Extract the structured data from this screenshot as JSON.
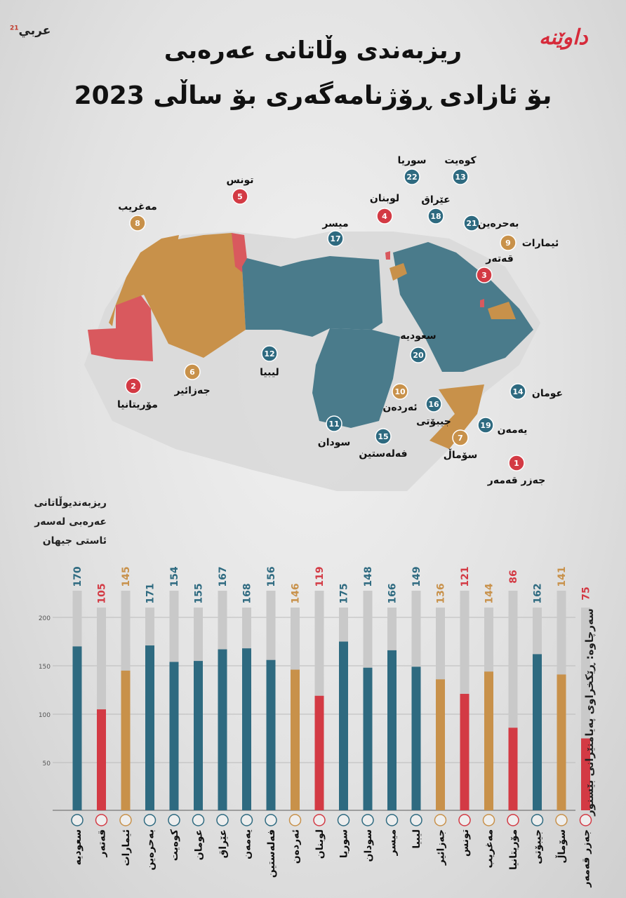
{
  "header": {
    "title_line1": "ریزبەندی وڵاتانی عەرەبی",
    "title_line2": "بۆ ئازادی ڕۆژنامەگەری بۆ ساڵی 2023",
    "logo_left": "عربي",
    "logo_left_sup": "21",
    "logo_right": "داوێنە"
  },
  "colors": {
    "teal": "#2e6a80",
    "red": "#d33a44",
    "orange": "#c8914a",
    "gray_bar": "#c9c9c9",
    "map_gray": "#d8d8d8"
  },
  "legend": {
    "rank_caption": [
      "ریزبەندیوڵاتانی",
      "عەرەبی لەسەر",
      "ئاستی جیهان"
    ],
    "source": "سەرچاوە: ڕێکخراوی پەیامنێرانی بێسنور"
  },
  "map_labels": [
    {
      "name": "تونس",
      "rank": "5",
      "color": "red"
    },
    {
      "name": "مەغریب",
      "rank": "8",
      "color": "orange"
    },
    {
      "name": "مۆریتانیا",
      "rank": "2",
      "color": "red"
    },
    {
      "name": "جەزائیر",
      "rank": "6",
      "color": "orange"
    },
    {
      "name": "لیبیا",
      "rank": "12",
      "color": "teal"
    },
    {
      "name": "میسر",
      "rank": "17",
      "color": "teal"
    },
    {
      "name": "سودان",
      "rank": "11",
      "color": "teal"
    },
    {
      "name": "فەلەستین",
      "rank": "15",
      "color": "teal"
    },
    {
      "name": "ئەردەن",
      "rank": "10",
      "color": "orange"
    },
    {
      "name": "لوبنان",
      "rank": "4",
      "color": "red"
    },
    {
      "name": "سوریا",
      "rank": "22",
      "color": "teal"
    },
    {
      "name": "عێراق",
      "rank": "18",
      "color": "teal"
    },
    {
      "name": "کوەیت",
      "rank": "13",
      "color": "teal"
    },
    {
      "name": "بەحرەین",
      "rank": "21",
      "color": "teal"
    },
    {
      "name": "ئیمارات",
      "rank": "9",
      "color": "orange"
    },
    {
      "name": "قەتەر",
      "rank": "3",
      "color": "red"
    },
    {
      "name": "سعودیە",
      "rank": "20",
      "color": "teal"
    },
    {
      "name": "جیبۆتی",
      "rank": "16",
      "color": "teal"
    },
    {
      "name": "یەمەن",
      "rank": "19",
      "color": "teal"
    },
    {
      "name": "عومان",
      "rank": "14",
      "color": "teal"
    },
    {
      "name": "سۆماڵ",
      "rank": "7",
      "color": "orange"
    },
    {
      "name": "جەزر قەمەر",
      "rank": "1",
      "color": "red"
    }
  ],
  "chart_data": {
    "type": "bar",
    "ylim": [
      0,
      225
    ],
    "yticks": [
      "50",
      "100",
      "150",
      "200"
    ],
    "categories": [
      "سعودیە",
      "قەتەر",
      "ئیمارات",
      "بەحرەین",
      "کوەیت",
      "عومان",
      "عێراق",
      "یەمەن",
      "فەلەستین",
      "ئەردەن",
      "لوبنان",
      "سوریا",
      "سودان",
      "میسر",
      "لیبیا",
      "جەزائیر",
      "تونس",
      "مەغریب",
      "مۆریتانیا",
      "جیبۆتی",
      "سۆماڵ",
      "جەزر قەمەر"
    ],
    "series": [
      {
        "values": [
          170,
          105,
          145,
          171,
          154,
          155,
          167,
          168,
          156,
          146,
          119,
          175,
          148,
          166,
          149,
          136,
          121,
          144,
          86,
          162,
          141,
          75
        ]
      }
    ],
    "value_labels": [
      "170",
      "105",
      "145",
      "171",
      "154",
      "155",
      "167",
      "168",
      "156",
      "146",
      "119",
      "175",
      "148",
      "166",
      "149",
      "136",
      "121",
      "144",
      "86",
      "162",
      "141",
      "75"
    ],
    "bar_colors": [
      "teal",
      "red",
      "orange",
      "teal",
      "teal",
      "teal",
      "teal",
      "teal",
      "teal",
      "orange",
      "red",
      "teal",
      "teal",
      "teal",
      "teal",
      "orange",
      "red",
      "orange",
      "red",
      "teal",
      "orange",
      "red"
    ],
    "flags": [
      "saudi-arabia-flag",
      "qatar-flag",
      "uae-flag",
      "bahrain-flag",
      "kuwait-flag",
      "oman-flag",
      "iraq-flag",
      "yemen-flag",
      "palestine-flag",
      "jordan-flag",
      "lebanon-flag",
      "syria-flag",
      "sudan-flag",
      "egypt-flag",
      "libya-flag",
      "algeria-flag",
      "tunisia-flag",
      "morocco-flag",
      "mauritania-flag",
      "djibouti-flag",
      "somalia-flag",
      "comoros-flag"
    ]
  }
}
